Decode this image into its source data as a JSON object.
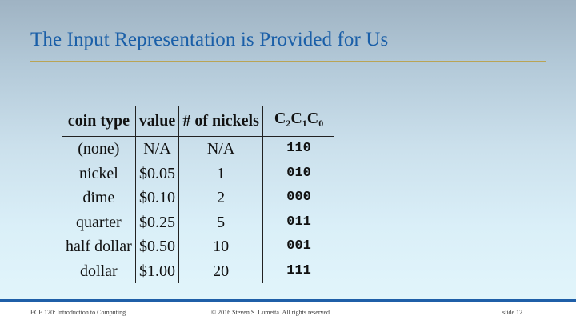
{
  "slide": {
    "title": "The Input Representation is Provided for Us",
    "table": {
      "headers": {
        "coin_type": "coin type",
        "value": "value",
        "nickels": "# of nickels",
        "code": {
          "c2": "C",
          "s2": "2",
          "c1": "C",
          "s1": "1",
          "c0": "C",
          "s0": "0"
        }
      },
      "rows": [
        {
          "coin": "(none)",
          "value": "N/A",
          "nickels": "N/A",
          "code": "110"
        },
        {
          "coin": "nickel",
          "value": "$0.05",
          "nickels": "1",
          "code": "010"
        },
        {
          "coin": "dime",
          "value": "$0.10",
          "nickels": "2",
          "code": "000"
        },
        {
          "coin": "quarter",
          "value": "$0.25",
          "nickels": "5",
          "code": "011"
        },
        {
          "coin": "half dollar",
          "value": "$0.50",
          "nickels": "10",
          "code": "001"
        },
        {
          "coin": "dollar",
          "value": "$1.00",
          "nickels": "20",
          "code": "111"
        }
      ]
    },
    "footer": {
      "course": "ECE 120: Introduction to Computing",
      "copyright": "© 2016 Steven S. Lumetta.  All rights reserved.",
      "slide_number": "slide 12"
    }
  },
  "colors": {
    "title": "#1a5fa8",
    "rule": "#b9a455",
    "footer_bar": "#1f5fa8"
  }
}
